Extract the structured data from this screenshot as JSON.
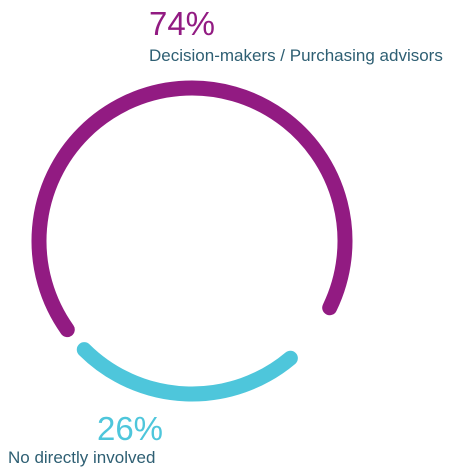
{
  "chart_data": {
    "type": "pie",
    "variant": "donut-arc",
    "slices": [
      {
        "label": "Decision-makers / Purchasing advisors",
        "value": 74,
        "value_label": "74%",
        "color": "#921B82",
        "label_color": "#2E5F73"
      },
      {
        "label": "No directly involved",
        "value": 26,
        "value_label": "26%",
        "color": "#4EC6DB",
        "label_color": "#2E5F73"
      }
    ],
    "legend": "none",
    "grid": false
  }
}
